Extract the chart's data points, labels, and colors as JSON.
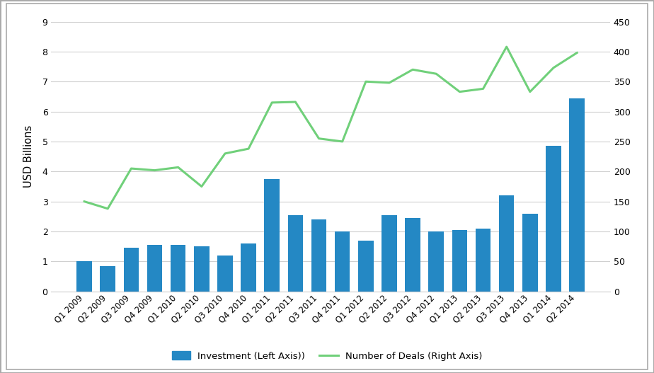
{
  "categories": [
    "Q1 2009",
    "Q2 2009",
    "Q3 2009",
    "Q4 2009",
    "Q1 2010",
    "Q2 2010",
    "Q3 2010",
    "Q4 2010",
    "Q1 2011",
    "Q2 2011",
    "Q3 2011",
    "Q4 2011",
    "Q1 2012",
    "Q2 2012",
    "Q3 2012",
    "Q4 2012",
    "Q1 2013",
    "Q2 2013",
    "Q3 2013",
    "Q4 2013",
    "Q1 2014",
    "Q2 2014"
  ],
  "investment": [
    1.0,
    0.85,
    1.45,
    1.55,
    1.55,
    1.5,
    1.2,
    1.6,
    3.75,
    2.55,
    2.4,
    2.0,
    1.7,
    2.55,
    2.45,
    2.0,
    2.05,
    2.1,
    3.2,
    2.6,
    4.85,
    6.45
  ],
  "deals": [
    150,
    138,
    205,
    202,
    207,
    175,
    230,
    238,
    315,
    316,
    255,
    250,
    350,
    348,
    370,
    363,
    333,
    338,
    408,
    333,
    373,
    398
  ],
  "bar_color": "#2488C4",
  "line_color": "#70D07A",
  "ylabel_left": "USD Billions",
  "ylim_left": [
    0,
    9
  ],
  "ylim_right": [
    0,
    450
  ],
  "yticks_left": [
    0,
    1,
    2,
    3,
    4,
    5,
    6,
    7,
    8,
    9
  ],
  "yticks_right": [
    0,
    50,
    100,
    150,
    200,
    250,
    300,
    350,
    400,
    450
  ],
  "legend_investment": "Investment (Left Axis))",
  "legend_deals": "Number of Deals (Right Axis)",
  "background_color": "#ffffff",
  "grid_color": "#d0d0d0",
  "line_width": 2.2,
  "border_color": "#aaaaaa"
}
